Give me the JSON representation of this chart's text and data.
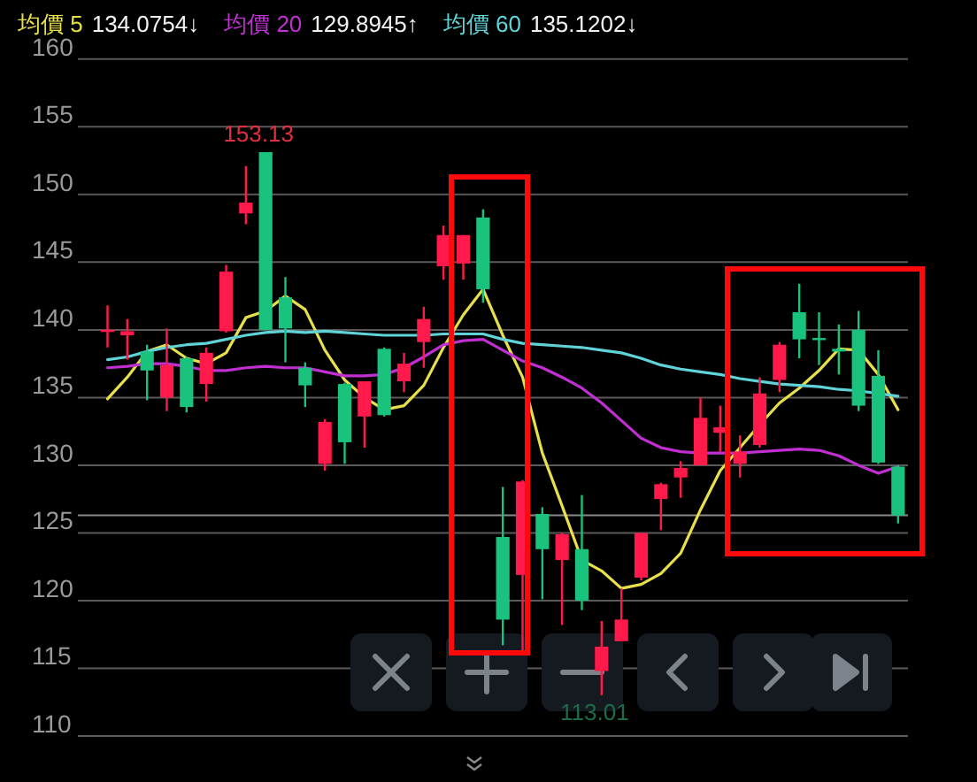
{
  "chart_data": {
    "type": "candlestick",
    "legend": "top",
    "grid": "y",
    "tick_labels": "y",
    "categories": [
      null,
      null,
      null,
      null,
      null,
      null,
      null,
      null,
      null,
      null,
      null,
      null,
      null,
      null,
      null,
      null,
      null,
      null,
      null,
      null,
      null,
      null,
      null,
      null,
      null,
      null,
      null,
      null,
      null,
      null,
      null,
      null,
      null,
      null,
      null,
      null,
      null,
      null,
      null,
      null,
      null
    ],
    "ohlc": [
      [
        140.0,
        141.8,
        138.7,
        140.0
      ],
      [
        139.6,
        140.8,
        137.8,
        139.9
      ],
      [
        138.4,
        138.9,
        134.8,
        137.0
      ],
      [
        135.0,
        140.1,
        134.0,
        137.4
      ],
      [
        137.9,
        138.0,
        133.9,
        134.3
      ],
      [
        136.0,
        138.7,
        134.7,
        138.3
      ],
      [
        139.9,
        144.8,
        139.8,
        144.3
      ],
      [
        148.6,
        152.1,
        147.8,
        149.4
      ],
      [
        153.13,
        153.13,
        140.0,
        140.0
      ],
      [
        142.4,
        143.9,
        137.6,
        140.1
      ],
      [
        137.2,
        137.6,
        134.3,
        135.9
      ],
      [
        130.1,
        133.4,
        129.6,
        133.2
      ],
      [
        136.0,
        136.1,
        130.1,
        131.7
      ],
      [
        133.6,
        136.2,
        131.3,
        136.2
      ],
      [
        138.6,
        138.7,
        133.6,
        133.7
      ],
      [
        136.2,
        138.3,
        135.4,
        137.5
      ],
      [
        139.1,
        141.7,
        137.2,
        140.8
      ],
      [
        144.7,
        147.7,
        143.7,
        147.0
      ],
      [
        144.9,
        147.0,
        143.7,
        147.0
      ],
      [
        148.3,
        148.9,
        142.0,
        143.0
      ],
      [
        124.7,
        128.4,
        116.7,
        118.6
      ],
      [
        121.9,
        128.9,
        116.3,
        128.8
      ],
      [
        126.4,
        126.9,
        120.1,
        123.8
      ],
      [
        123.0,
        125.0,
        118.2,
        124.9
      ],
      [
        123.8,
        127.8,
        119.3,
        120.0
      ],
      [
        114.8,
        118.5,
        113.01,
        116.6
      ],
      [
        117.0,
        120.9,
        117.0,
        118.6
      ],
      [
        121.7,
        125.0,
        121.5,
        125.0
      ],
      [
        127.5,
        128.7,
        125.2,
        128.6
      ],
      [
        129.1,
        130.3,
        127.6,
        129.8
      ],
      [
        130.0,
        135.0,
        130.0,
        133.5
      ],
      [
        132.4,
        134.4,
        131.0,
        132.8
      ],
      [
        130.1,
        132.2,
        129.1,
        131.0
      ],
      [
        131.5,
        136.5,
        131.3,
        135.3
      ],
      [
        136.3,
        139.1,
        135.4,
        138.9
      ],
      [
        141.3,
        143.4,
        137.9,
        139.3
      ],
      [
        139.4,
        141.3,
        137.4,
        139.3
      ],
      [
        138.6,
        140.4,
        136.7,
        138.4
      ],
      [
        140.0,
        141.4,
        134.0,
        134.4
      ],
      [
        136.6,
        138.5,
        130.1,
        130.2
      ],
      [
        129.9,
        130.0,
        125.7,
        126.3
      ]
    ],
    "colors": [
      "#ff1a4b",
      "#ff1a4b",
      "#19c37d",
      "#ff1a4b",
      "#19c37d",
      "#ff1a4b",
      "#ff1a4b",
      "#ff1a4b",
      "#19c37d",
      "#19c37d",
      "#19c37d",
      "#ff1a4b",
      "#19c37d",
      "#ff1a4b",
      "#19c37d",
      "#ff1a4b",
      "#ff1a4b",
      "#ff1a4b",
      "#ff1a4b",
      "#19c37d",
      "#19c37d",
      "#ff1a4b",
      "#19c37d",
      "#ff1a4b",
      "#19c37d",
      "#ff1a4b",
      "#ff1a4b",
      "#ff1a4b",
      "#ff1a4b",
      "#ff1a4b",
      "#ff1a4b",
      "#ff1a4b",
      "#ff1a4b",
      "#ff1a4b",
      "#ff1a4b",
      "#19c37d",
      "#19c37d",
      "#19c37d",
      "#19c37d",
      "#19c37d",
      "#19c37d"
    ],
    "series": [
      {
        "type": "line",
        "name": "均價 5",
        "color": "#e8e04a",
        "values": [
          134.9,
          136.5,
          138.4,
          138.9,
          137.9,
          137.5,
          138.3,
          140.9,
          141.4,
          142.5,
          141.5,
          138.5,
          136.3,
          135.0,
          134.1,
          134.4,
          135.9,
          138.7,
          141.1,
          143.0,
          139.6,
          136.5,
          130.9,
          127.0,
          123.0,
          122.2,
          120.9,
          121.2,
          122.0,
          123.5,
          126.7,
          129.6,
          131.3,
          133.0,
          134.6,
          135.7,
          137.0,
          138.6,
          138.5,
          136.7,
          134.1
        ]
      },
      {
        "type": "line",
        "name": "均價 20",
        "color": "#c12fd2",
        "values": [
          137.2,
          137.3,
          137.5,
          137.5,
          137.3,
          137.0,
          137.0,
          137.2,
          137.3,
          137.2,
          137.2,
          136.9,
          136.6,
          136.6,
          136.7,
          137.2,
          138.0,
          138.9,
          139.2,
          139.3,
          138.5,
          137.7,
          137.2,
          136.5,
          135.7,
          134.6,
          133.3,
          132.0,
          131.3,
          131.0,
          130.9,
          130.9,
          130.9,
          131.0,
          131.1,
          131.2,
          131.1,
          130.7,
          130.0,
          129.4,
          129.9
        ]
      },
      {
        "type": "line",
        "name": "均價 60",
        "color": "#5fd3d8",
        "values": [
          137.8,
          138.0,
          138.4,
          138.7,
          138.9,
          139.0,
          139.3,
          139.6,
          139.8,
          139.9,
          139.8,
          139.9,
          139.8,
          139.7,
          139.6,
          139.6,
          139.6,
          139.7,
          139.7,
          139.7,
          139.3,
          139.0,
          138.9,
          138.8,
          138.7,
          138.5,
          138.3,
          137.9,
          137.4,
          137.1,
          136.9,
          136.7,
          136.4,
          136.2,
          136.0,
          135.9,
          135.8,
          135.6,
          135.5,
          135.3,
          135.1
        ]
      }
    ],
    "annotations": [
      "134.0754↓",
      "129.8945↑",
      "135.1202↓",
      {
        "text": "153.13",
        "y": 153.13
      },
      {
        "text": "113.01",
        "y": 113.01
      }
    ],
    "ref_lines": [
      {
        "axis": "y",
        "value": 126.3
      }
    ],
    "ylim": [
      110,
      160
    ],
    "yticks": [
      110,
      115,
      120,
      125,
      130,
      135,
      140,
      145,
      150,
      155,
      160
    ]
  }
}
